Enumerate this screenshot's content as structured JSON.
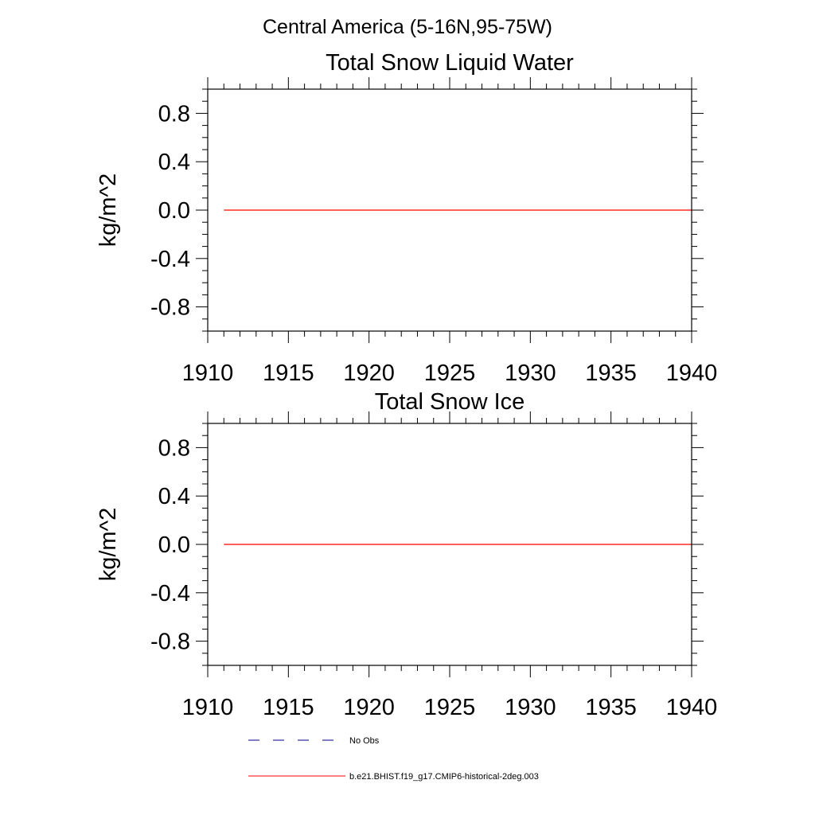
{
  "suptitle": "Central America (5-16N,95-75W)",
  "chart_data": [
    {
      "type": "line",
      "title": "Total Snow Liquid Water",
      "xlabel": "",
      "ylabel": "kg/m^2",
      "xlim": [
        1910,
        1940
      ],
      "ylim": [
        -1.0,
        1.0
      ],
      "xticks": [
        1910,
        1915,
        1920,
        1925,
        1930,
        1935,
        1940
      ],
      "xtick_labels": [
        "1910",
        "1915",
        "1920",
        "1925",
        "1930",
        "1935",
        "1940"
      ],
      "yticks": [
        0.8,
        0.4,
        0.0,
        -0.4,
        -0.8
      ],
      "ytick_labels": [
        "0.8",
        "0.4",
        "0.0",
        "-0.4",
        "-0.8"
      ],
      "series": [
        {
          "name": "b.e21.BHIST.f19_g17.CMIP6-historical-2deg.003",
          "color": "#ff0000",
          "x": [
            1911,
            1940
          ],
          "y": [
            0.0,
            0.0
          ]
        }
      ]
    },
    {
      "type": "line",
      "title": "Total Snow Ice",
      "xlabel": "",
      "ylabel": "kg/m^2",
      "xlim": [
        1910,
        1940
      ],
      "ylim": [
        -1.0,
        1.0
      ],
      "xticks": [
        1910,
        1915,
        1920,
        1925,
        1930,
        1935,
        1940
      ],
      "xtick_labels": [
        "1910",
        "1915",
        "1920",
        "1925",
        "1930",
        "1935",
        "1940"
      ],
      "yticks": [
        0.8,
        0.4,
        0.0,
        -0.4,
        -0.8
      ],
      "ytick_labels": [
        "0.8",
        "0.4",
        "0.0",
        "-0.4",
        "-0.8"
      ],
      "series": [
        {
          "name": "b.e21.BHIST.f19_g17.CMIP6-historical-2deg.003",
          "color": "#ff0000",
          "x": [
            1911,
            1940
          ],
          "y": [
            0.0,
            0.0
          ]
        }
      ]
    }
  ],
  "legend": {
    "placement": "bottom",
    "entries": [
      {
        "label": "No Obs",
        "color": "#000080",
        "dash": "dashed"
      },
      {
        "label": "b.e21.BHIST.f19_g17.CMIP6-historical-2deg.003",
        "color": "#ff0000",
        "dash": "solid"
      }
    ]
  }
}
